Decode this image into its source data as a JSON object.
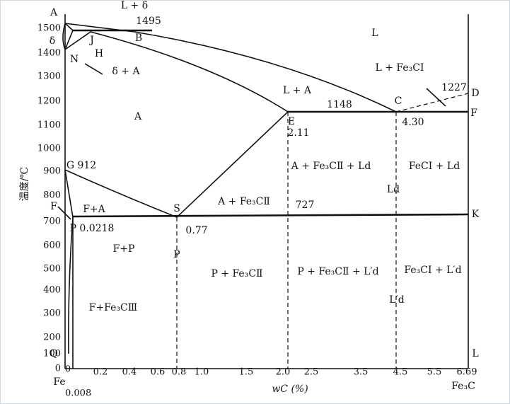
{
  "y_axis": {
    "title": "温度/℃",
    "ticks": [
      "1500",
      "1400",
      "1300",
      "1200",
      "1100",
      "1000",
      "900",
      "800",
      "700",
      "600",
      "500",
      "400",
      "300",
      "200",
      "100",
      "0"
    ]
  },
  "x_axis": {
    "title": "wC (%)",
    "ticks": [
      "0",
      "0.2",
      "0.4",
      "0.6",
      "0.8",
      "1.0",
      "1.5",
      "2.0",
      "2.5",
      "3.5",
      "4.5",
      "5.5",
      "6.69"
    ],
    "left_label": "Fe",
    "left_sub": "0.008",
    "right_label": "Fe₃C"
  },
  "labels": [
    "A",
    "L + δ",
    "1495",
    "δ",
    "J",
    "B",
    "H",
    "N",
    "δ + A",
    "L",
    "L + A",
    "L + Fe₃CⅠ",
    "1227",
    "D",
    "C",
    "1148",
    "F",
    "E",
    "4.30",
    "2.11",
    "A",
    "A + Fe₃CⅡ + Ld",
    "FeCⅠ + Ld",
    "Ld",
    "G 912",
    "A + Fe₃CⅡ",
    "727",
    "S",
    "K",
    "F",
    "F+A",
    "P 0.0218",
    "0.77",
    "F+P",
    "P",
    "P + Fe₃CⅡ",
    "P + Fe₃CⅡ + L′d",
    "Fe₃CⅠ + L′d",
    "L′d",
    "F+Fe₃CⅢ",
    "Q",
    "L"
  ]
}
